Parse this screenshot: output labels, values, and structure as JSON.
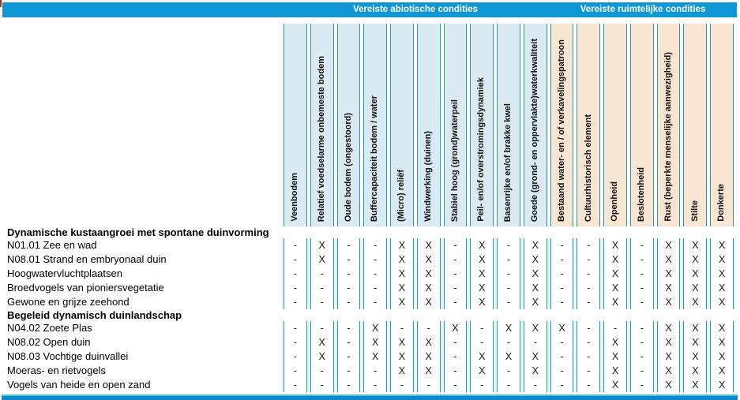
{
  "title_bar": {
    "abiotic": "Vereiste abiotische condities",
    "ruimtelijk": "Vereiste ruimtelijke condities"
  },
  "columns": [
    {
      "label": "Veenbodem",
      "group": "abiotisch"
    },
    {
      "label": "Relatief voedselarme onbemeste bodem",
      "group": "abiotisch"
    },
    {
      "label": "Oude bodem (ongestoord)",
      "group": "abiotisch"
    },
    {
      "label": "Buffercapaciteit bodem / water",
      "group": "abiotisch"
    },
    {
      "label": "(Micro) reliëf",
      "group": "abiotisch"
    },
    {
      "label": "Windwerking (duinen)",
      "group": "abiotisch"
    },
    {
      "label": "Stabiel hoog (grond)waterpeil",
      "group": "abiotisch"
    },
    {
      "label": "Peil- en/of overstromingsdynamiek",
      "group": "abiotisch"
    },
    {
      "label": "Basenrijke en/of brakke kwel",
      "group": "abiotisch"
    },
    {
      "label": "Goede (grond- en oppervlakte)waterkwaliteit",
      "group": "abiotisch"
    },
    {
      "label": "Bestaand water- en / of verkavelingspatroon",
      "group": "ruimtelijk"
    },
    {
      "label": "Cultuurhistorisch element",
      "group": "ruimtelijk"
    },
    {
      "label": "Openheid",
      "group": "ruimtelijk"
    },
    {
      "label": "Beslotenheid",
      "group": "ruimtelijk"
    },
    {
      "label": "Rust (beperkte menselijke aanwezigheid)",
      "group": "ruimtelijk"
    },
    {
      "label": "Stilte",
      "group": "ruimtelijk"
    },
    {
      "label": "Donkerte",
      "group": "ruimtelijk"
    }
  ],
  "rows": [
    {
      "type": "group",
      "label": "Dynamische kustaangroei met spontane duinvorming"
    },
    {
      "type": "data",
      "label": "N01.01 Zee en wad",
      "values": [
        "-",
        "X",
        "-",
        "-",
        "X",
        "X",
        "-",
        "X",
        "-",
        "X",
        "-",
        "-",
        "X",
        "-",
        "X",
        "X",
        "X"
      ]
    },
    {
      "type": "data",
      "label": "N08.01 Strand en embryonaal duin",
      "values": [
        "-",
        "X",
        "-",
        "-",
        "X",
        "X",
        "-",
        "X",
        "-",
        "X",
        "-",
        "-",
        "X",
        "-",
        "X",
        "X",
        "X"
      ]
    },
    {
      "type": "data",
      "label": "Hoogwatervluchtplaatsen",
      "values": [
        "-",
        "-",
        "-",
        "-",
        "X",
        "X",
        "-",
        "X",
        "-",
        "X",
        "-",
        "-",
        "X",
        "-",
        "X",
        "X",
        "X"
      ]
    },
    {
      "type": "data",
      "label": "Broedvogels van pioniersvegetatie",
      "values": [
        "-",
        "-",
        "-",
        "-",
        "X",
        "X",
        "-",
        "X",
        "-",
        "X",
        "-",
        "-",
        "X",
        "-",
        "X",
        "X",
        "X"
      ]
    },
    {
      "type": "data",
      "label": "Gewone en grijze zeehond",
      "values": [
        "-",
        "-",
        "-",
        "-",
        "X",
        "X",
        "-",
        "X",
        "-",
        "X",
        "-",
        "-",
        "X",
        "-",
        "X",
        "X",
        "X"
      ]
    },
    {
      "type": "group",
      "label": "Begeleid dynamisch duinlandschap"
    },
    {
      "type": "data",
      "label": "N04.02 Zoete Plas",
      "values": [
        "-",
        "-",
        "-",
        "X",
        "-",
        "-",
        "X",
        "-",
        "X",
        "X",
        "X",
        "-",
        "-",
        "-",
        "X",
        "X",
        "X"
      ]
    },
    {
      "type": "data",
      "label": "N08.02 Open duin",
      "values": [
        "-",
        "X",
        "-",
        "X",
        "X",
        "X",
        "-",
        "-",
        "-",
        "-",
        "-",
        "-",
        "X",
        "-",
        "X",
        "X",
        "X"
      ]
    },
    {
      "type": "data",
      "label": "N08.03 Vochtige duinvallei",
      "values": [
        "-",
        "X",
        "-",
        "X",
        "X",
        "X",
        "-",
        "X",
        "X",
        "X",
        "-",
        "-",
        "X",
        "-",
        "X",
        "X",
        "X"
      ]
    },
    {
      "type": "data",
      "label": "Moeras- en rietvogels",
      "values": [
        "-",
        "-",
        "-",
        "-",
        "X",
        "X",
        "-",
        "X",
        "-",
        "X",
        "-",
        "-",
        "X",
        "-",
        "X",
        "X",
        "X"
      ]
    },
    {
      "type": "data",
      "label": "Vogels van heide en open zand",
      "values": [
        "-",
        "-",
        "-",
        "-",
        "-",
        "-",
        "-",
        "-",
        "-",
        "-",
        "-",
        "-",
        "X",
        "-",
        "X",
        "X",
        "X"
      ]
    }
  ],
  "colors": {
    "bar_blue": "#0e96d5",
    "abiotic_header_bg": "#d9eaf2",
    "ruimtelijk_header_bg": "#fae5d2",
    "grid_teal": "#1f9e9d",
    "bottom_cyan": "#4cc3d4",
    "bottom_blue": "#0e88cc"
  }
}
